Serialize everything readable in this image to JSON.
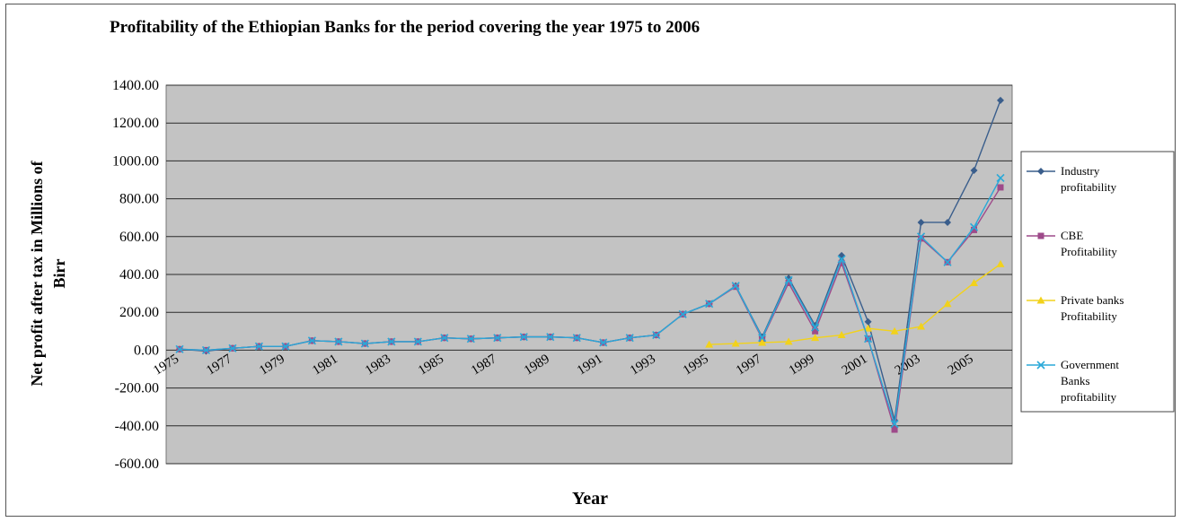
{
  "chart_data": {
    "type": "line",
    "title": "Profitability of the Ethiopian Banks for the period covering the year 1975 to 2006",
    "xlabel": "Year",
    "ylabel_lines": [
      "Net profit after tax in Millions of",
      "Birr"
    ],
    "ylim": [
      -600,
      1400
    ],
    "yticks": [
      "1400.00",
      "1200.00",
      "1000.00",
      "800.00",
      "600.00",
      "400.00",
      "200.00",
      "0.00",
      "-200.00",
      "-400.00",
      "-600.00"
    ],
    "ytick_values": [
      1400,
      1200,
      1000,
      800,
      600,
      400,
      200,
      0,
      -200,
      -400,
      -600
    ],
    "x": [
      1975,
      1976,
      1977,
      1978,
      1979,
      1980,
      1981,
      1982,
      1983,
      1984,
      1985,
      1986,
      1987,
      1988,
      1989,
      1990,
      1991,
      1992,
      1993,
      1994,
      1995,
      1996,
      1997,
      1998,
      1999,
      2000,
      2001,
      2002,
      2003,
      2004,
      2005,
      2006
    ],
    "xtick_labels": [
      "1975",
      "1977",
      "1979",
      "1981",
      "1983",
      "1985",
      "1987",
      "1989",
      "1991",
      "1993",
      "1995",
      "1997",
      "1999",
      "2001",
      "2003",
      "2005"
    ],
    "xtick_years": [
      1975,
      1977,
      1979,
      1981,
      1983,
      1985,
      1987,
      1989,
      1991,
      1993,
      1995,
      1997,
      1999,
      2001,
      2003,
      2005
    ],
    "grid": true,
    "plot_background": "#c3c3c3",
    "legend_position": "right",
    "series": [
      {
        "name_lines": [
          "Industry",
          "profitability"
        ],
        "color": "#3a5e8c",
        "marker": "diamond",
        "values": [
          5,
          -5,
          10,
          20,
          20,
          50,
          45,
          35,
          45,
          45,
          65,
          60,
          65,
          70,
          70,
          65,
          40,
          65,
          80,
          190,
          245,
          340,
          70,
          380,
          130,
          500,
          150,
          -370,
          675,
          675,
          950,
          1320
        ]
      },
      {
        "name_lines": [
          "CBE",
          "Profitability"
        ],
        "color": "#9e4a8a",
        "marker": "square",
        "values": [
          5,
          0,
          10,
          20,
          20,
          50,
          45,
          35,
          45,
          45,
          65,
          60,
          65,
          70,
          70,
          65,
          40,
          65,
          80,
          190,
          245,
          335,
          60,
          355,
          100,
          460,
          60,
          -420,
          590,
          465,
          635,
          860
        ]
      },
      {
        "name_lines": [
          "Private banks",
          "Profitability"
        ],
        "color": "#f2d21b",
        "marker": "triangle",
        "values": [
          null,
          null,
          null,
          null,
          null,
          null,
          null,
          null,
          null,
          null,
          null,
          null,
          null,
          null,
          null,
          null,
          null,
          null,
          null,
          null,
          30,
          35,
          40,
          45,
          65,
          80,
          115,
          100,
          125,
          245,
          355,
          455
        ]
      },
      {
        "name_lines": [
          "Government",
          "Banks",
          "profitability"
        ],
        "color": "#2aa9d8",
        "marker": "x",
        "values": [
          5,
          0,
          10,
          20,
          20,
          50,
          45,
          35,
          45,
          45,
          65,
          60,
          65,
          70,
          70,
          65,
          40,
          65,
          80,
          190,
          245,
          340,
          65,
          370,
          120,
          480,
          60,
          -390,
          600,
          465,
          650,
          910
        ]
      }
    ]
  }
}
